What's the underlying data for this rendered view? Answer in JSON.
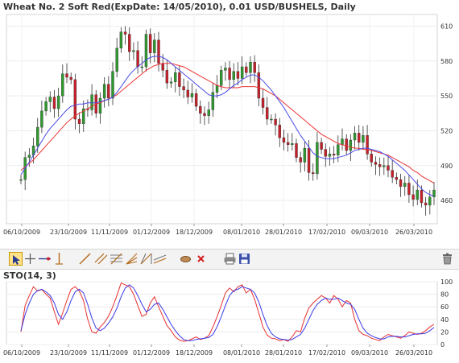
{
  "chart_data": [
    {
      "type": "candlestick",
      "title": "Wheat  No. 2 Soft Red(ExpDate: 14/05/2010), 0.01 USD/BUSHELS, Daily",
      "x_tick_labels": [
        "06/10/2009",
        "23/10/2009",
        "11/11/2009",
        "01/12/2009",
        "18/12/2009",
        "08/01/2010",
        "28/01/2010",
        "17/02/2010",
        "09/03/2010",
        "26/03/2010"
      ],
      "y_tick_labels": [
        "610",
        "580",
        "550",
        "520",
        "490",
        "460"
      ],
      "ylim": [
        440,
        620
      ],
      "up_color": "#2e9a2e",
      "down_color": "#c8202a",
      "ma_fast_color": "#4a4ae8",
      "ma_slow_color": "#ee3333",
      "closes": [
        478,
        497,
        499,
        507,
        523,
        537,
        545,
        549,
        539,
        550,
        569,
        566,
        564,
        530,
        526,
        539,
        538,
        551,
        535,
        548,
        560,
        548,
        571,
        591,
        605,
        603,
        588,
        589,
        575,
        575,
        603,
        587,
        598,
        578,
        572,
        561,
        562,
        570,
        558,
        555,
        549,
        552,
        541,
        535,
        533,
        538,
        553,
        559,
        572,
        574,
        564,
        571,
        565,
        575,
        570,
        579,
        570,
        548,
        540,
        530,
        530,
        525,
        514,
        510,
        508,
        509,
        497,
        493,
        505,
        484,
        483,
        510,
        504,
        498,
        500,
        499,
        508,
        513,
        503,
        512,
        518,
        510,
        516,
        500,
        493,
        491,
        489,
        490,
        486,
        480,
        478,
        472,
        475,
        465,
        461,
        469,
        458,
        456,
        463,
        469
      ],
      "opens": [
        478,
        478,
        497,
        499,
        507,
        523,
        537,
        545,
        549,
        539,
        550,
        569,
        566,
        564,
        530,
        526,
        539,
        538,
        551,
        535,
        548,
        560,
        548,
        571,
        591,
        605,
        603,
        588,
        589,
        575,
        575,
        603,
        587,
        598,
        578,
        572,
        561,
        562,
        570,
        558,
        555,
        549,
        552,
        541,
        535,
        533,
        538,
        553,
        559,
        572,
        574,
        564,
        571,
        565,
        575,
        570,
        579,
        570,
        548,
        540,
        530,
        530,
        525,
        514,
        510,
        508,
        509,
        497,
        493,
        505,
        484,
        483,
        510,
        504,
        498,
        500,
        499,
        508,
        513,
        503,
        512,
        518,
        510,
        516,
        500,
        493,
        491,
        489,
        490,
        486,
        480,
        478,
        472,
        475,
        465,
        461,
        469,
        458,
        456,
        463
      ],
      "ma_fast": [
        482,
        488,
        493,
        499,
        505,
        511,
        517,
        522,
        526,
        530,
        534,
        538,
        541,
        542,
        543,
        543,
        544,
        544,
        544,
        545,
        546,
        547,
        549,
        553,
        558,
        563,
        568,
        572,
        575,
        578,
        581,
        583,
        584,
        584,
        583,
        581,
        578,
        575,
        572,
        569,
        566,
        563,
        560,
        557,
        554,
        551,
        550,
        550,
        551,
        553,
        556,
        559,
        561,
        564,
        566,
        568,
        568,
        566,
        563,
        559,
        555,
        550,
        545,
        540,
        534,
        528,
        522,
        516,
        511,
        506,
        501,
        498,
        497,
        496,
        496,
        496,
        497,
        498,
        499,
        501,
        503,
        504,
        505,
        505,
        504,
        503,
        502,
        500,
        498,
        495,
        492,
        489,
        486,
        482,
        478,
        474,
        470,
        467,
        465,
        464
      ],
      "ma_slow": [
        486,
        489,
        492,
        495,
        499,
        503,
        507,
        511,
        515,
        519,
        523,
        527,
        530,
        533,
        535,
        537,
        539,
        541,
        543,
        544,
        546,
        547,
        549,
        551,
        554,
        557,
        560,
        563,
        566,
        569,
        572,
        574,
        576,
        577,
        578,
        578,
        578,
        577,
        576,
        575,
        573,
        571,
        569,
        567,
        565,
        563,
        561,
        559,
        558,
        557,
        557,
        557,
        557,
        558,
        558,
        558,
        558,
        557,
        556,
        554,
        552,
        550,
        547,
        544,
        541,
        538,
        535,
        532,
        529,
        526,
        523,
        520,
        517,
        515,
        513,
        511,
        509,
        508,
        507,
        506,
        505,
        505,
        504,
        504,
        503,
        502,
        501,
        500,
        499,
        497,
        495,
        493,
        491,
        489,
        486,
        484,
        481,
        479,
        477,
        475
      ]
    },
    {
      "type": "line",
      "title": "STO(14, 3)",
      "x_tick_labels": [
        "06/10/2009",
        "23/10/2009",
        "11/11/2009",
        "01/12/2009",
        "18/12/2009",
        "08/01/2010",
        "28/01/2010",
        "17/02/2010",
        "09/03/2010",
        "26/03/2010"
      ],
      "y_tick_labels": [
        "100",
        "80",
        "60",
        "40",
        "20",
        "0"
      ],
      "ylim": [
        0,
        100
      ],
      "series": [
        {
          "color": "#e83030",
          "values": [
            20,
            62,
            78,
            92,
            85,
            88,
            80,
            74,
            52,
            32,
            50,
            70,
            88,
            92,
            85,
            70,
            40,
            20,
            18,
            28,
            35,
            45,
            60,
            78,
            98,
            95,
            92,
            80,
            62,
            45,
            48,
            66,
            76,
            60,
            45,
            30,
            22,
            12,
            7,
            5,
            6,
            9,
            12,
            8,
            10,
            14,
            28,
            44,
            62,
            82,
            90,
            84,
            92,
            95,
            82,
            88,
            72,
            50,
            28,
            15,
            10,
            9,
            6,
            8,
            5,
            12,
            22,
            20,
            42,
            58,
            66,
            72,
            78,
            74,
            66,
            78,
            72,
            60,
            70,
            66,
            40,
            22,
            16,
            14,
            10,
            8,
            6,
            12,
            16,
            14,
            12,
            10,
            14,
            20,
            18,
            16,
            18,
            22,
            28,
            32
          ]
        },
        {
          "color": "#3a3ae8",
          "values": [
            22,
            48,
            66,
            80,
            86,
            88,
            84,
            78,
            66,
            48,
            40,
            52,
            70,
            84,
            88,
            82,
            64,
            42,
            26,
            22,
            26,
            34,
            44,
            58,
            76,
            90,
            95,
            90,
            78,
            64,
            52,
            56,
            64,
            66,
            56,
            44,
            32,
            22,
            14,
            8,
            6,
            6,
            8,
            9,
            10,
            11,
            16,
            28,
            44,
            62,
            78,
            86,
            88,
            92,
            90,
            88,
            82,
            68,
            48,
            30,
            18,
            12,
            9,
            8,
            7,
            8,
            12,
            16,
            26,
            40,
            54,
            64,
            70,
            74,
            72,
            72,
            74,
            70,
            66,
            64,
            56,
            40,
            26,
            18,
            14,
            11,
            9,
            9,
            12,
            13,
            13,
            12,
            12,
            14,
            16,
            17,
            17,
            18,
            22,
            27
          ]
        }
      ]
    }
  ],
  "toolbar": {
    "tools": [
      {
        "icon": "cursor-icon"
      },
      {
        "icon": "crosshair-icon"
      },
      {
        "icon": "horizontal-line-icon"
      },
      {
        "icon": "vertical-line-icon"
      },
      {
        "icon": "trend-line-icon"
      },
      {
        "icon": "parallel-lines-icon"
      },
      {
        "icon": "fibonacci-icon"
      },
      {
        "icon": "fan-icon"
      },
      {
        "icon": "gann-icon"
      },
      {
        "icon": "regression-icon"
      },
      {
        "icon": "eraser-icon"
      },
      {
        "icon": "delete-icon"
      },
      {
        "icon": "print-icon"
      },
      {
        "icon": "save-icon"
      },
      {
        "icon": "trash-icon"
      }
    ]
  }
}
